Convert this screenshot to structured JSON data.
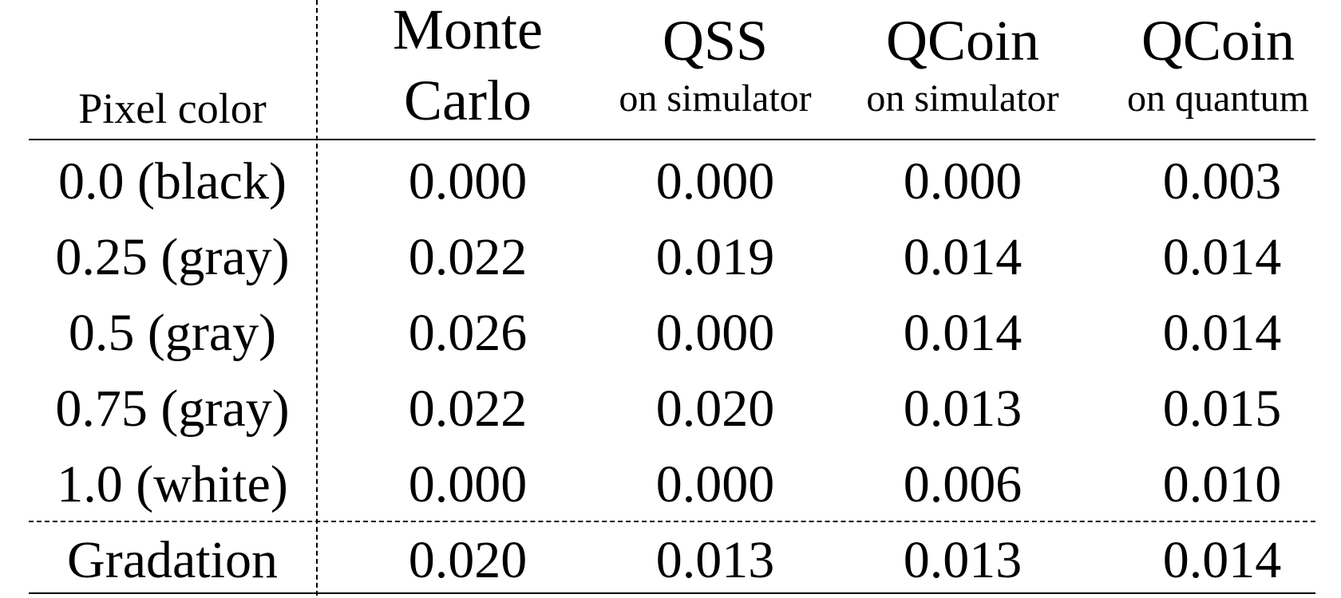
{
  "table": {
    "columns": [
      {
        "main": "Pixel color",
        "sub": ""
      },
      {
        "main": "Monte Carlo",
        "main_line1": "Monte",
        "main_line2": "Carlo",
        "sub": ""
      },
      {
        "main": "QSS",
        "sub": "on simulator"
      },
      {
        "main": "QCoin",
        "sub": "on simulator"
      },
      {
        "main": "QCoin",
        "sub": "on quantum"
      }
    ],
    "rows": [
      [
        "0.0 (black)",
        "0.000",
        "0.000",
        "0.000",
        "0.003"
      ],
      [
        "0.25 (gray)",
        "0.022",
        "0.019",
        "0.014",
        "0.014"
      ],
      [
        "0.5 (gray)",
        "0.026",
        "0.000",
        "0.014",
        "0.014"
      ],
      [
        "0.75 (gray)",
        "0.022",
        "0.020",
        "0.013",
        "0.015"
      ],
      [
        "1.0 (white)",
        "0.000",
        "0.000",
        "0.006",
        "0.010"
      ]
    ],
    "summary_row": [
      "Gradation",
      "0.020",
      "0.013",
      "0.013",
      "0.014"
    ]
  }
}
